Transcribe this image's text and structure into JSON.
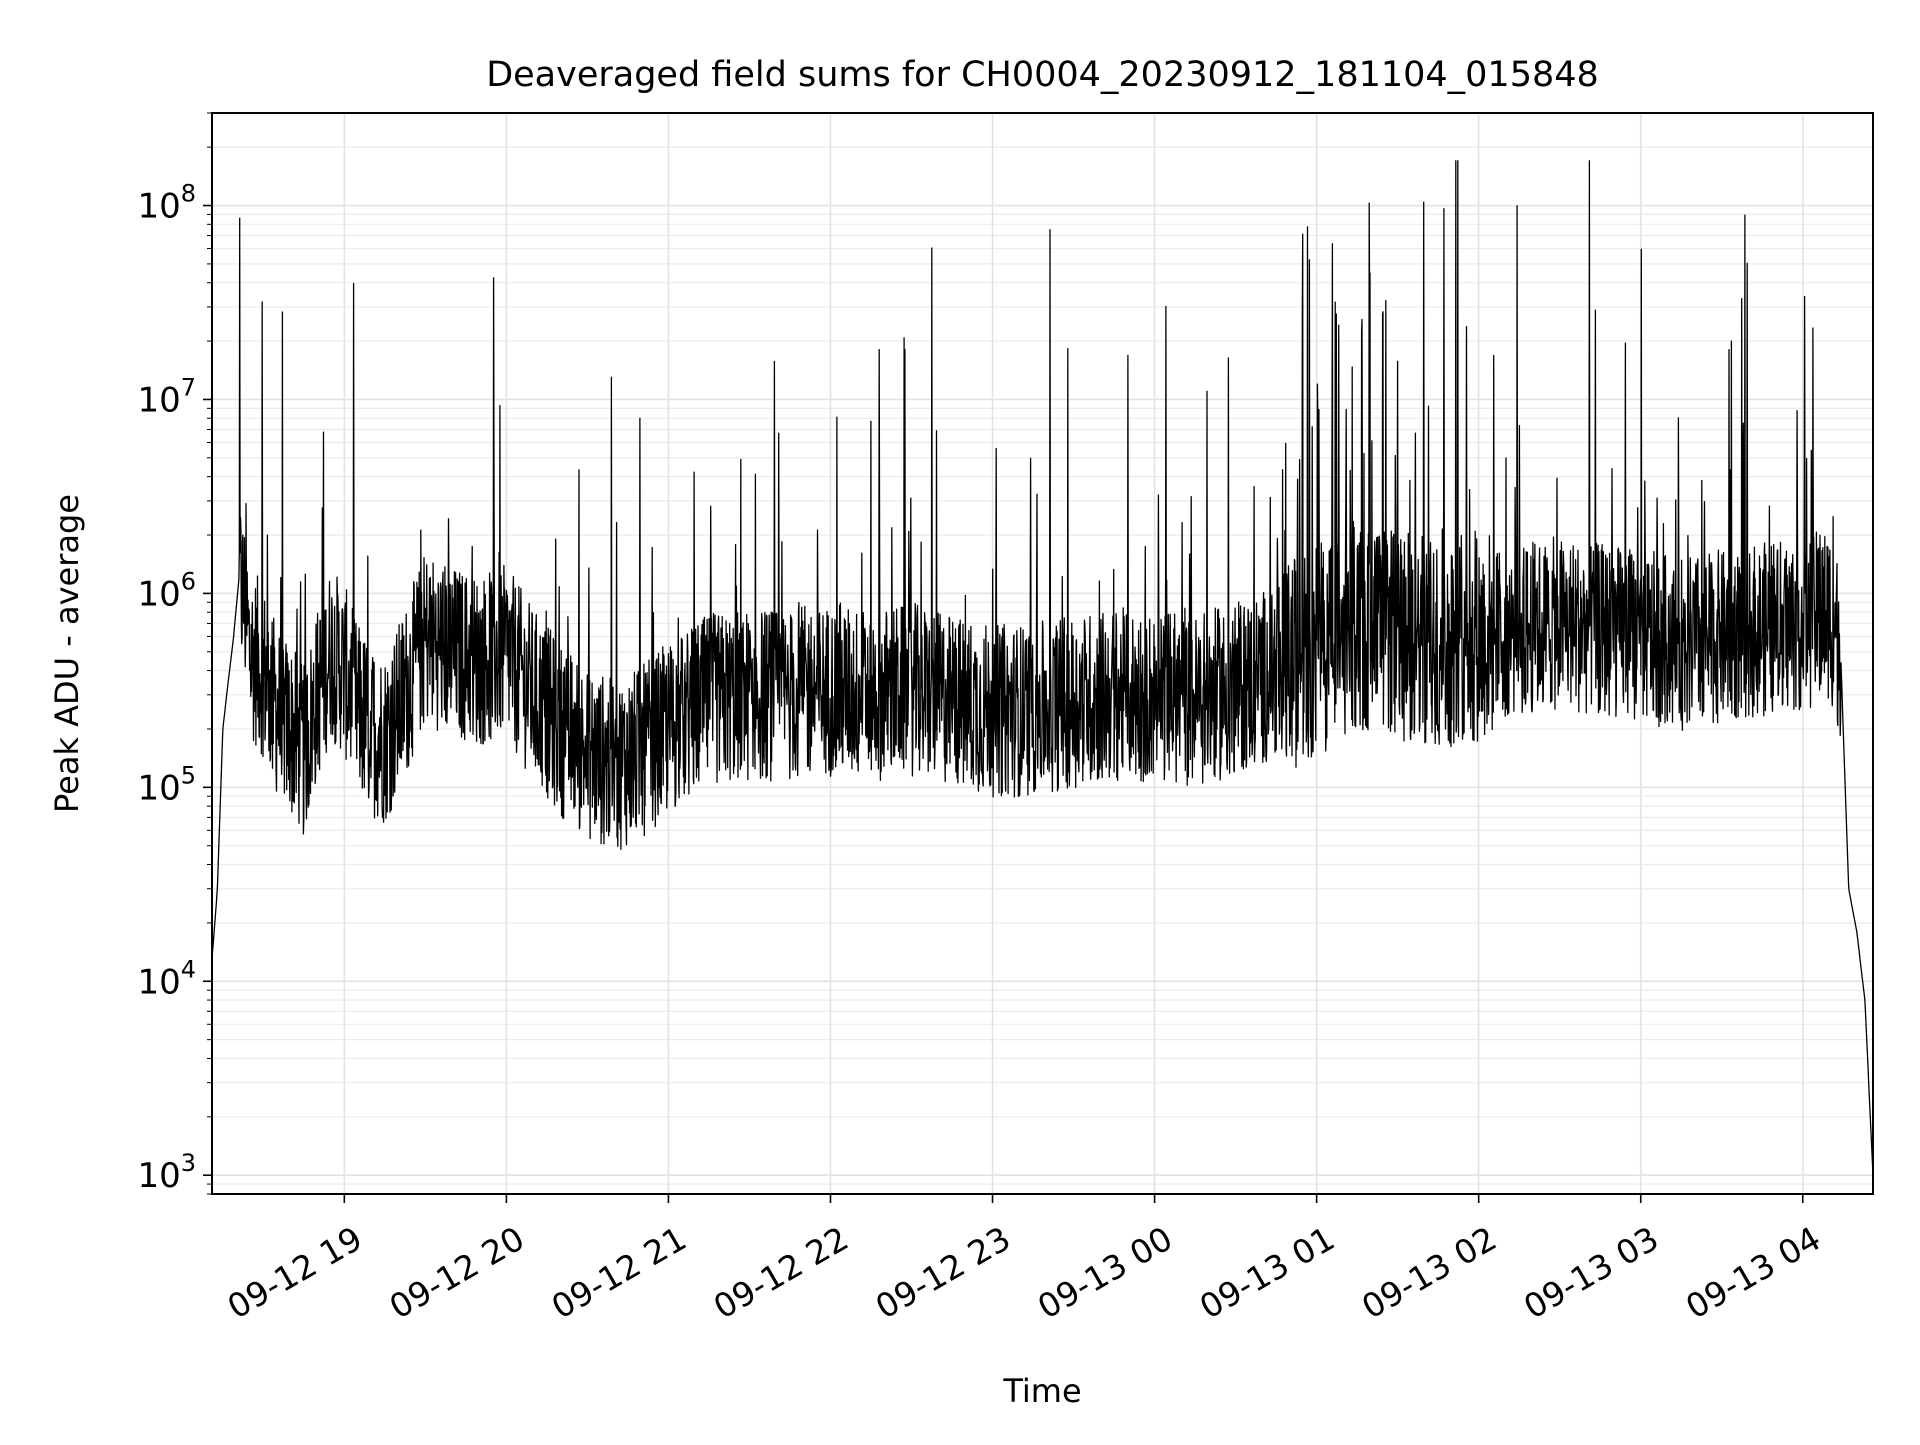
{
  "chart_data": {
    "type": "line",
    "title": "Deaveraged field sums for CH0004_20230912_181104_015848",
    "xlabel": "Time",
    "ylabel": "Peak ADU - average",
    "yscale": "log",
    "ylim": [
      800,
      300000000
    ],
    "xlim": [
      "2023-09-12 18:11",
      "2023-09-13 04:26"
    ],
    "grid": true,
    "x_ticks": [
      {
        "t": "2023-09-12 19:00",
        "label": "09-12 19"
      },
      {
        "t": "2023-09-12 20:00",
        "label": "09-12 20"
      },
      {
        "t": "2023-09-12 21:00",
        "label": "09-12 21"
      },
      {
        "t": "2023-09-12 22:00",
        "label": "09-12 22"
      },
      {
        "t": "2023-09-12 23:00",
        "label": "09-12 23"
      },
      {
        "t": "2023-09-13 00:00",
        "label": "09-13 00"
      },
      {
        "t": "2023-09-13 01:00",
        "label": "09-13 01"
      },
      {
        "t": "2023-09-13 02:00",
        "label": "09-13 02"
      },
      {
        "t": "2023-09-13 03:00",
        "label": "09-13 03"
      },
      {
        "t": "2023-09-13 04:00",
        "label": "09-13 04"
      }
    ],
    "y_ticks": [
      {
        "value": 1000,
        "base": "10",
        "exp": "3"
      },
      {
        "value": 10000,
        "base": "10",
        "exp": "4"
      },
      {
        "value": 100000,
        "base": "10",
        "exp": "5"
      },
      {
        "value": 1000000,
        "base": "10",
        "exp": "6"
      },
      {
        "value": 10000000,
        "base": "10",
        "exp": "7"
      },
      {
        "value": 100000000,
        "base": "10",
        "exp": "8"
      }
    ],
    "series_color": "#000000",
    "series": [
      {
        "points": [
          [
            "2023-09-12 18:11",
            13000
          ],
          [
            "2023-09-12 18:13",
            30000
          ],
          [
            "2023-09-12 18:15",
            200000
          ],
          [
            "2023-09-12 18:17",
            350000
          ],
          [
            "2023-09-12 18:19",
            600000
          ],
          [
            "2023-09-12 18:21",
            1200000
          ],
          [
            "2023-09-12 18:23",
            900000
          ],
          [
            "2023-09-12 18:25",
            500000
          ],
          [
            "2023-09-12 18:30",
            400000
          ],
          [
            "2023-09-12 18:35",
            250000
          ],
          [
            "2023-09-12 18:40",
            200000
          ],
          [
            "2023-09-12 18:45",
            150000
          ],
          [
            "2023-09-12 18:50",
            300000
          ],
          [
            "2023-09-12 18:55",
            500000
          ],
          [
            "2023-09-12 19:00",
            400000
          ],
          [
            "2023-09-12 19:05",
            250000
          ],
          [
            "2023-09-12 19:10",
            200000
          ],
          [
            "2023-09-12 19:15",
            180000
          ],
          [
            "2023-09-12 19:20",
            250000
          ],
          [
            "2023-09-12 19:30",
            600000
          ],
          [
            "2023-09-12 19:40",
            500000
          ],
          [
            "2023-09-12 19:50",
            450000
          ],
          [
            "2023-09-12 20:00",
            500000
          ],
          [
            "2023-09-12 20:10",
            300000
          ],
          [
            "2023-09-12 20:20",
            200000
          ],
          [
            "2023-09-12 20:30",
            150000
          ],
          [
            "2023-09-12 20:40",
            130000
          ],
          [
            "2023-09-12 20:50",
            150000
          ],
          [
            "2023-09-12 21:00",
            200000
          ],
          [
            "2023-09-12 21:15",
            280000
          ],
          [
            "2023-09-12 21:30",
            300000
          ],
          [
            "2023-09-12 21:45",
            300000
          ],
          [
            "2023-09-12 22:00",
            320000
          ],
          [
            "2023-09-12 22:15",
            300000
          ],
          [
            "2023-09-12 22:30",
            320000
          ],
          [
            "2023-09-12 22:45",
            280000
          ],
          [
            "2023-09-12 23:00",
            250000
          ],
          [
            "2023-09-12 23:15",
            250000
          ],
          [
            "2023-09-12 23:30",
            280000
          ],
          [
            "2023-09-12 23:45",
            300000
          ],
          [
            "2023-09-13 00:00",
            300000
          ],
          [
            "2023-09-13 00:15",
            280000
          ],
          [
            "2023-09-13 00:30",
            320000
          ],
          [
            "2023-09-13 00:45",
            400000
          ],
          [
            "2023-09-13 01:00",
            500000
          ],
          [
            "2023-09-13 01:15",
            700000
          ],
          [
            "2023-09-13 01:30",
            600000
          ],
          [
            "2023-09-13 01:45",
            550000
          ],
          [
            "2023-09-13 02:00",
            600000
          ],
          [
            "2023-09-13 02:15",
            650000
          ],
          [
            "2023-09-13 02:30",
            700000
          ],
          [
            "2023-09-13 02:45",
            650000
          ],
          [
            "2023-09-13 03:00",
            600000
          ],
          [
            "2023-09-13 03:15",
            550000
          ],
          [
            "2023-09-13 03:30",
            600000
          ],
          [
            "2023-09-13 03:45",
            650000
          ],
          [
            "2023-09-13 04:00",
            700000
          ],
          [
            "2023-09-13 04:10",
            800000
          ],
          [
            "2023-09-13 04:14",
            500000
          ],
          [
            "2023-09-13 04:17",
            30000
          ],
          [
            "2023-09-13 04:20",
            18000
          ],
          [
            "2023-09-13 04:23",
            8000
          ],
          [
            "2023-09-13 04:26",
            1000
          ]
        ]
      }
    ]
  }
}
